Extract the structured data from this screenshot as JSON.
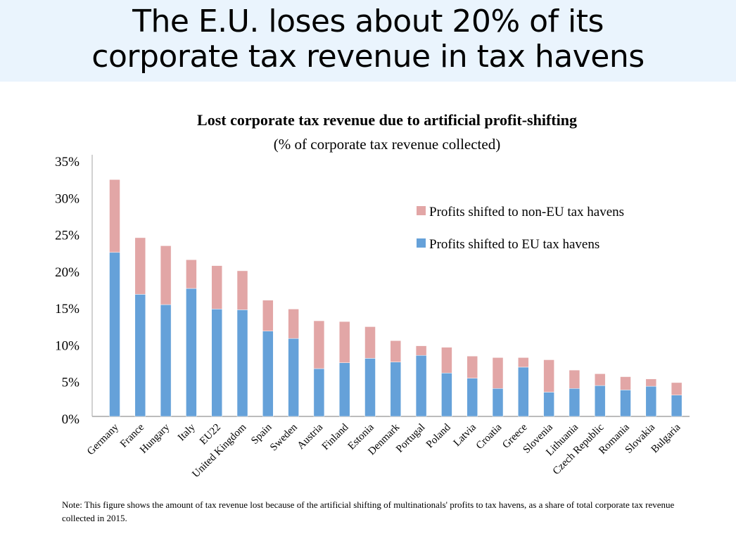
{
  "header": {
    "headline_line1": "The E.U. loses about 20% of its",
    "headline_line2": "corporate tax revenue in tax havens"
  },
  "note": "Note:  This figure shows the amount of  tax revenue lost because of the artificial shifting of multinationals' profits to tax havens, as a share of total corporate tax revenue collected in 2015.",
  "colors": {
    "eu": "#65a1d9",
    "non_eu": "#e2a6a6",
    "header_bg": "#eaf4fd"
  },
  "chart_data": {
    "type": "bar",
    "stacked": true,
    "title": "Lost corporate tax revenue due to artificial profit-shifting",
    "subtitle": "(% of corporate tax revenue collected)",
    "xlabel": "",
    "ylabel": "",
    "ylim": [
      0,
      35
    ],
    "yticks": [
      "0%",
      "5%",
      "10%",
      "15%",
      "20%",
      "25%",
      "30%",
      "35%"
    ],
    "grid": false,
    "legend_position": "top-right",
    "categories": [
      "Germany",
      "France",
      "Hungary",
      "Italy",
      "EU22",
      "United Kingdom",
      "Spain",
      "Sweden",
      "Austria",
      "Finland",
      "Estonia",
      "Denmark",
      "Portugal",
      "Poland",
      "Latvia",
      "Croatia",
      "Greece",
      "Slovenia",
      "Lithuania",
      "Czech Republic",
      "Romania",
      "Slovakia",
      "Bulgaria"
    ],
    "series": [
      {
        "name": "Profits shifted to EU tax havens",
        "color": "#65a1d9",
        "values": [
          22.3,
          16.6,
          15.2,
          17.4,
          14.6,
          14.5,
          11.6,
          10.6,
          6.5,
          7.3,
          7.9,
          7.4,
          8.3,
          5.9,
          5.2,
          3.8,
          6.7,
          3.3,
          3.8,
          4.2,
          3.6,
          4.1,
          2.9
        ]
      },
      {
        "name": "Profits shifted to non-EU tax havens",
        "color": "#e2a6a6",
        "values": [
          9.9,
          7.7,
          8.0,
          3.9,
          5.9,
          5.3,
          4.2,
          4.0,
          6.5,
          5.6,
          4.3,
          2.9,
          1.3,
          3.5,
          3.0,
          4.2,
          1.3,
          4.4,
          2.5,
          1.6,
          1.8,
          1.0,
          1.7
        ]
      }
    ],
    "totals": [
      32.2,
      24.3,
      23.2,
      21.3,
      20.5,
      19.8,
      15.8,
      14.6,
      13.0,
      12.9,
      12.2,
      10.3,
      9.6,
      9.4,
      8.2,
      8.0,
      8.0,
      7.7,
      6.3,
      5.8,
      5.4,
      5.1,
      4.6
    ]
  }
}
